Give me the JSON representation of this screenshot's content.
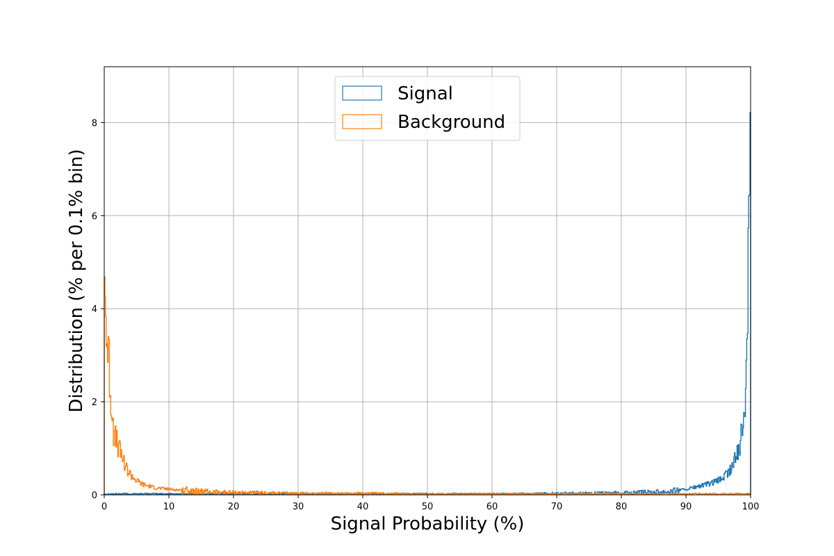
{
  "chart_data": {
    "type": "histogram",
    "xlabel": "Signal Probability (%)",
    "ylabel": "Distribution (% per 0.1% bin)",
    "xlim": [
      0,
      100
    ],
    "ylim": [
      0,
      9.2
    ],
    "xticks": [
      "0",
      "10",
      "20",
      "30",
      "40",
      "50",
      "60",
      "70",
      "80",
      "90",
      "100"
    ],
    "yticks": [
      "0",
      "2",
      "4",
      "6",
      "8"
    ],
    "grid": true,
    "legend_position": "top-center",
    "series": [
      {
        "name": "Signal",
        "color": "#1f77b4",
        "x": [
          0,
          10,
          20,
          30,
          40,
          50,
          60,
          70,
          80,
          85,
          88,
          90,
          92,
          94,
          95,
          96,
          97,
          97.5,
          98,
          98.5,
          99,
          99.3,
          99.5,
          99.7,
          99.8,
          99.9
        ],
        "values": [
          0.02,
          0.02,
          0.02,
          0.02,
          0.02,
          0.02,
          0.02,
          0.03,
          0.04,
          0.06,
          0.08,
          0.12,
          0.18,
          0.25,
          0.3,
          0.4,
          0.55,
          0.7,
          0.95,
          1.2,
          1.6,
          2.6,
          4.0,
          5.9,
          6.5,
          8.75
        ]
      },
      {
        "name": "Background",
        "color": "#ff7f0e",
        "x": [
          0,
          0.1,
          0.3,
          0.5,
          0.7,
          1.0,
          1.3,
          1.5,
          2.0,
          2.5,
          3.0,
          3.5,
          4.0,
          5.0,
          6.0,
          8.0,
          10.0,
          12.0,
          15.0,
          20.0,
          25.0,
          30.0,
          40.0,
          50.0,
          60.0,
          70.0,
          80.0,
          90.0,
          99.9
        ],
        "values": [
          5.5,
          4.4,
          3.7,
          3.1,
          2.9,
          2.2,
          1.65,
          1.3,
          1.1,
          0.9,
          0.75,
          0.55,
          0.45,
          0.3,
          0.22,
          0.15,
          0.12,
          0.1,
          0.07,
          0.05,
          0.04,
          0.03,
          0.03,
          0.02,
          0.02,
          0.02,
          0.02,
          0.02,
          0.02
        ]
      }
    ]
  }
}
